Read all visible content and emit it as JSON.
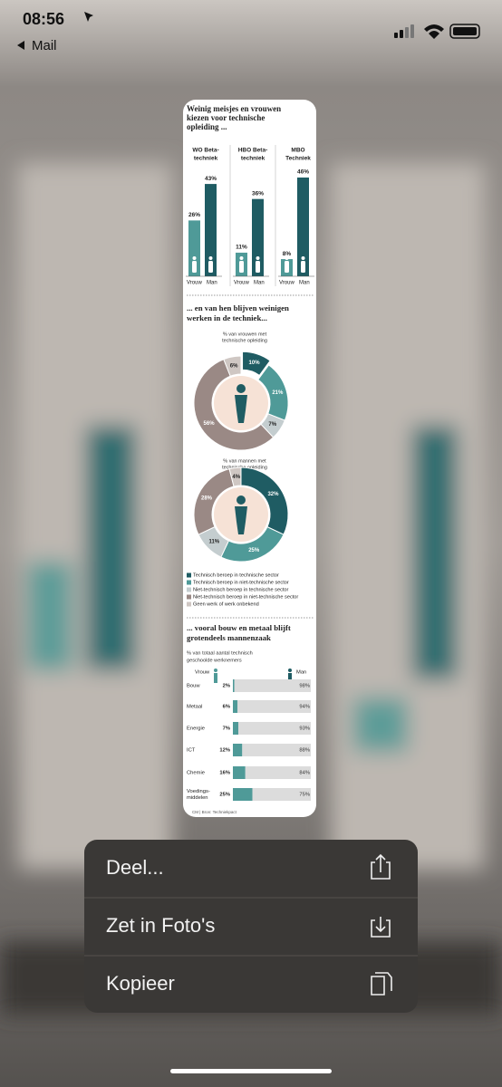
{
  "status_bar": {
    "time": "08:56",
    "back": "Mail"
  },
  "infographic": {
    "opleiding": {
      "title": [
        "Weinig meisjes en vrouwen",
        "kiezen voor technische",
        "opleiding ..."
      ],
      "vrouw": "Vrouw",
      "man": "Man",
      "groups": [
        {
          "label": [
            "WO Beta-",
            "techniek"
          ],
          "vrouw": {
            "value": 26,
            "label": "26%"
          },
          "man": {
            "value": 43,
            "label": "43%"
          }
        },
        {
          "label": [
            "HBO Beta-",
            "techniek"
          ],
          "vrouw": {
            "value": 11,
            "label": "11%"
          },
          "man": {
            "value": 36,
            "label": "36%"
          }
        },
        {
          "label": [
            "MBO",
            "Techniek"
          ],
          "vrouw": {
            "value": 8,
            "label": "8%"
          },
          "man": {
            "value": 46,
            "label": "46%"
          }
        }
      ]
    },
    "werk": {
      "title": [
        "... en van hen blijven weinigen",
        "werken in de techniek..."
      ],
      "donuts": [
        {
          "subtitle": [
            "% van vrouwen met",
            "technische opleiding"
          ],
          "values": [
            10,
            21,
            7,
            56,
            6
          ],
          "value_labels": [
            "10%",
            "21%",
            "7%",
            "56%",
            "6%"
          ]
        },
        {
          "subtitle": [
            "% van mannen met",
            "technische opleiding"
          ],
          "values": [
            32,
            25,
            11,
            28,
            4
          ],
          "value_labels": [
            "32%",
            "25%",
            "11%",
            "28%",
            "4%"
          ]
        }
      ],
      "legend": [
        {
          "label": "Technisch beroep in technische sector",
          "color": "#1f5c63"
        },
        {
          "label": "Technisch beroep in niet-technische sector",
          "color": "#4f9a98"
        },
        {
          "label": "Niet-technisch beroep in technische sector",
          "color": "#c4cdcf"
        },
        {
          "label": "Niet-technisch beroep in niet-technische sector",
          "color": "#9a8985"
        },
        {
          "label": "Geen werk of werk onbekend",
          "color": "#cfc7c3"
        }
      ]
    },
    "sector": {
      "title": [
        "... vooral bouw en metaal blijft",
        "grotendeels mannenzaak"
      ],
      "subtitle": [
        "% van totaal aantal technisch",
        "geschoolde werknemers"
      ],
      "vrouw": "Vrouw",
      "man": "Man",
      "rows": [
        {
          "label": [
            "Bouw"
          ],
          "vrouw": {
            "value": 2,
            "label": "2%"
          },
          "man": {
            "value": 98,
            "label": "98%"
          }
        },
        {
          "label": [
            "Metaal"
          ],
          "vrouw": {
            "value": 6,
            "label": "6%"
          },
          "man": {
            "value": 94,
            "label": "94%"
          }
        },
        {
          "label": [
            "Energie"
          ],
          "vrouw": {
            "value": 7,
            "label": "7%"
          },
          "man": {
            "value": 93,
            "label": "93%"
          }
        },
        {
          "label": [
            "ICT"
          ],
          "vrouw": {
            "value": 12,
            "label": "12%"
          },
          "man": {
            "value": 88,
            "label": "88%"
          }
        },
        {
          "label": [
            "Chemie"
          ],
          "vrouw": {
            "value": 16,
            "label": "16%"
          },
          "man": {
            "value": 84,
            "label": "84%"
          }
        },
        {
          "label": [
            "Voedings-",
            "middelen"
          ],
          "vrouw": {
            "value": 25,
            "label": "25%"
          },
          "man": {
            "value": 75,
            "label": "75%"
          }
        }
      ],
      "source": "CM | Bron: Techniekpact"
    }
  },
  "menu": [
    "Deel...",
    "Zet in Foto's",
    "Kopieer"
  ]
}
